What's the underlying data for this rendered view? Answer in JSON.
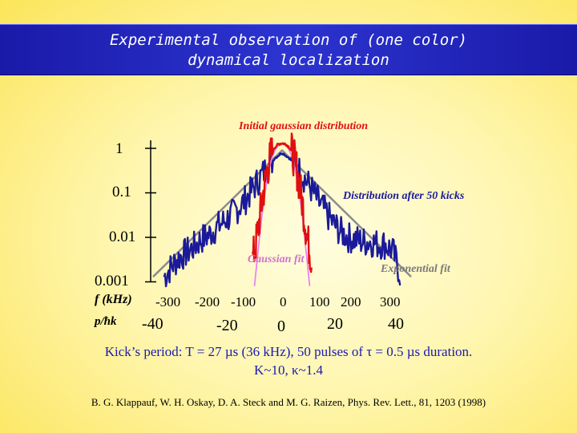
{
  "slide": {
    "title_line1": "Experimental observation of (one color)",
    "title_line2": "dynamical localization"
  },
  "chart_data": {
    "type": "line",
    "yscale": "log",
    "y_ticks": [
      "1",
      "0.1",
      "0.01",
      "0.001"
    ],
    "x_axis_f_label": "f (kHz)",
    "x_ticks_f": [
      "-300",
      "-200",
      "-100",
      "0",
      "100",
      "200",
      "300"
    ],
    "x_axis_p_label": "p/ħk",
    "x_ticks_p": [
      "-40",
      "-20",
      "0",
      "20",
      "40"
    ],
    "annotations": {
      "initial": "Initial gaussian distribution",
      "after": "Distribution after 50 kicks",
      "gaussian_fit": "Gaussian fit",
      "exponential_fit": "Exponential fit"
    },
    "colors": {
      "initial": "#e01010",
      "after": "#1a1a9a",
      "gaussian_fit": "#ee82ee",
      "exponential_fit": "#8c8c8c"
    },
    "series": [
      {
        "key": "after",
        "x": [
          -320,
          -300,
          -280,
          -260,
          -240,
          -220,
          -200,
          -180,
          -160,
          -140,
          -120,
          -100,
          -80,
          -60,
          -40,
          -20,
          0,
          20,
          40,
          60,
          80,
          100,
          120,
          140,
          160,
          180,
          200,
          220,
          240,
          260,
          280,
          300,
          320
        ],
        "y": [
          0.0013,
          0.0022,
          0.0035,
          0.0045,
          0.006,
          0.009,
          0.011,
          0.016,
          0.022,
          0.03,
          0.045,
          0.07,
          0.12,
          0.22,
          0.38,
          0.6,
          0.8,
          0.6,
          0.38,
          0.22,
          0.12,
          0.06,
          0.035,
          0.02,
          0.013,
          0.01,
          0.009,
          0.008,
          0.008,
          0.007,
          0.007,
          0.005,
          0.0015
        ]
      },
      {
        "key": "initial",
        "x": [
          -80,
          -70,
          -60,
          -50,
          -40,
          -30,
          -20,
          -10,
          0,
          10,
          20,
          30,
          40,
          50,
          60,
          70,
          80
        ],
        "y": [
          0.003,
          0.008,
          0.03,
          0.11,
          0.33,
          0.72,
          1.05,
          1.25,
          1.3,
          1.25,
          1.05,
          0.72,
          0.33,
          0.11,
          0.03,
          0.008,
          0.003
        ]
      },
      {
        "key": "gaussian_fit",
        "x": [
          -75,
          -65,
          -55,
          -45,
          -35,
          -25,
          -15,
          -5,
          0,
          5,
          15,
          25,
          35,
          45,
          55,
          65,
          75
        ],
        "y": [
          0.0008,
          0.005,
          0.03,
          0.12,
          0.36,
          0.72,
          1.05,
          1.25,
          1.3,
          1.25,
          1.05,
          0.72,
          0.36,
          0.12,
          0.03,
          0.005,
          0.0008
        ]
      },
      {
        "key": "exponential_fit",
        "x": [
          -350,
          0,
          350
        ],
        "y": [
          0.0013,
          0.9,
          0.0013
        ]
      }
    ]
  },
  "caption": {
    "line1": "Kick’s period: T = 27 µs (36 kHz), 50 pulses of τ = 0.5 µs duration.",
    "line2": "K~10, κ~1.4"
  },
  "reference": "B. G. Klappauf, W. H. Oskay, D. A. Steck and M. G. Raizen, Phys. Rev. Lett., 81, 1203 (1998)"
}
